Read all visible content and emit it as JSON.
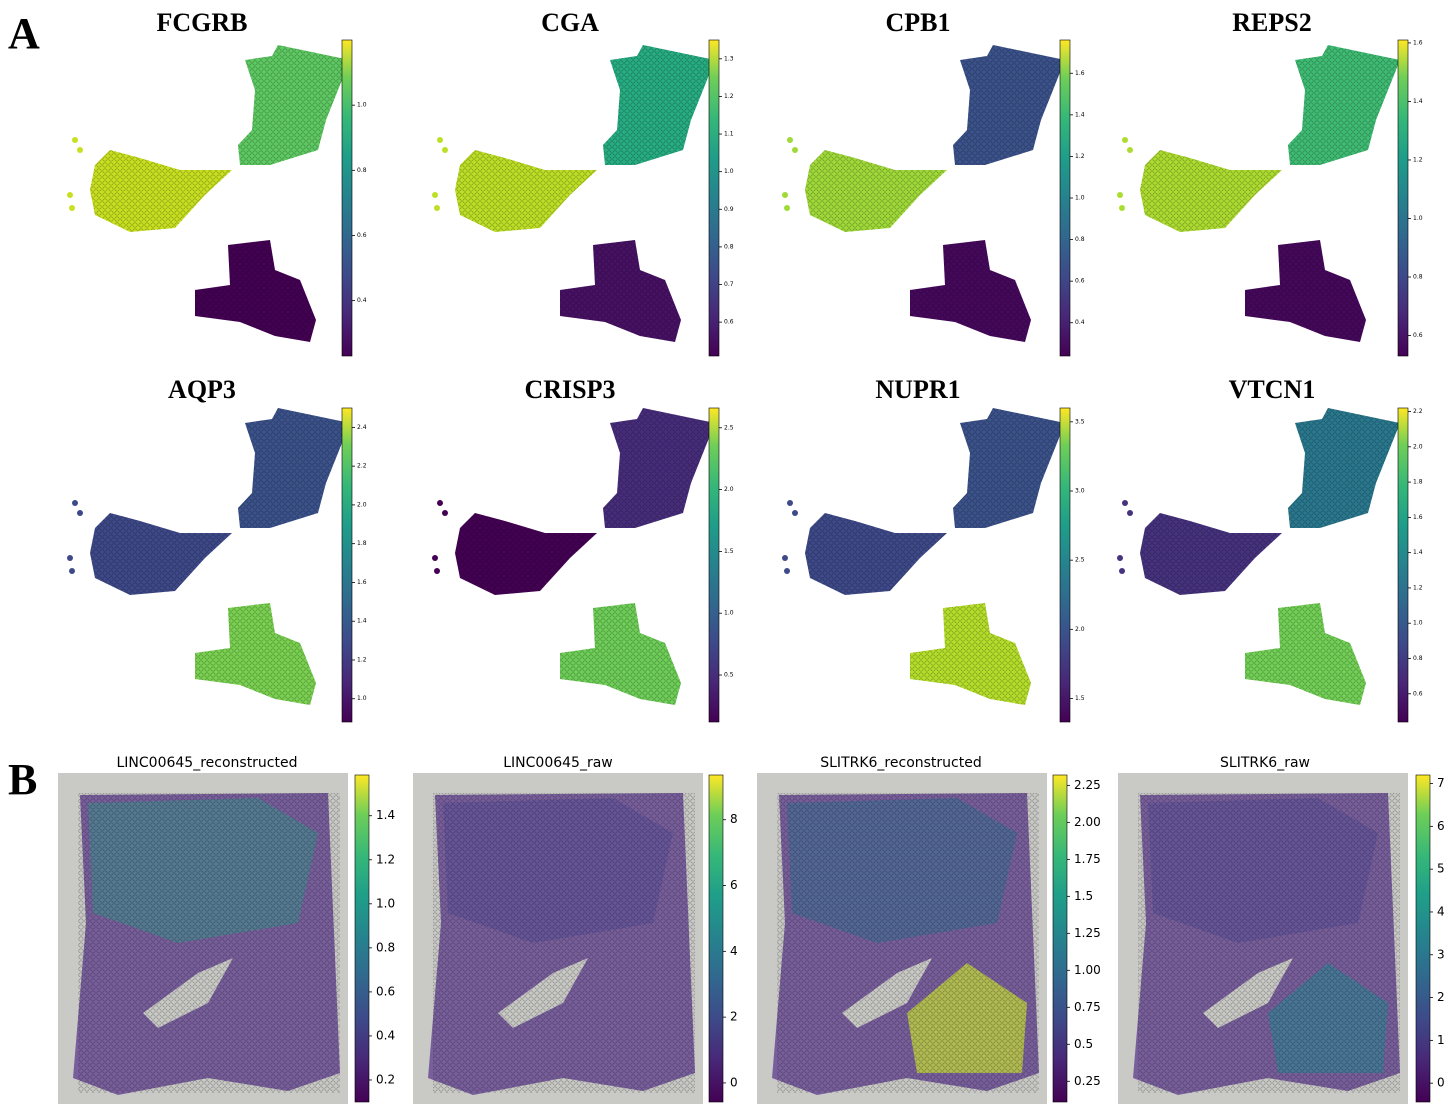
{
  "panel_labels": [
    "A",
    "B"
  ],
  "panels": [
    {
      "title": "FCGRB",
      "colorbar": {
        "lim": [
          0.23,
          1.2
        ],
        "ticks": [
          0.4,
          0.6,
          0.8,
          {
            "value": 1.0,
            "label": "1.0"
          }
        ]
      }
    },
    {
      "title": "CGA",
      "colorbar": {
        "lim": [
          0.51,
          1.35
        ],
        "ticks": [
          0.6,
          0.7,
          0.8,
          0.9,
          {
            "value": 1.0,
            "label": "1.0"
          },
          1.1,
          1.2,
          1.3
        ]
      }
    },
    {
      "title": "CPB1",
      "colorbar": {
        "lim": [
          0.24,
          1.76
        ],
        "ticks": [
          0.4,
          0.6,
          0.8,
          {
            "value": 1.0,
            "label": "1.0"
          },
          1.2,
          1.4,
          1.6
        ]
      }
    },
    {
      "title": "REPS2",
      "colorbar": {
        "lim": [
          0.53,
          1.61
        ],
        "ticks": [
          0.6,
          0.8,
          {
            "value": 1.0,
            "label": "1.0"
          },
          1.2,
          1.4,
          1.6
        ]
      }
    },
    {
      "title": "AQP3",
      "colorbar": {
        "lim": [
          0.88,
          2.5
        ],
        "ticks": [
          {
            "value": 1.0,
            "label": "1.0"
          },
          1.2,
          1.4,
          1.6,
          1.8,
          {
            "value": 2.0,
            "label": "2.0"
          },
          2.2,
          2.4
        ]
      }
    },
    {
      "title": "CRISP3",
      "colorbar": {
        "lim": [
          0.12,
          2.66
        ],
        "ticks": [
          0.5,
          {
            "value": 1.0,
            "label": "1.0"
          },
          1.5,
          {
            "value": 2.0,
            "label": "2.0"
          },
          2.5
        ]
      }
    },
    {
      "title": "NUPR1",
      "colorbar": {
        "lim": [
          1.33,
          3.6
        ],
        "ticks": [
          1.5,
          {
            "value": 2.0,
            "label": "2.0"
          },
          2.5,
          {
            "value": 3.0,
            "label": "3.0"
          },
          3.5
        ]
      }
    },
    {
      "title": "VTCN1",
      "colorbar": {
        "lim": [
          0.44,
          2.22
        ],
        "ticks": [
          0.6,
          0.8,
          {
            "value": 1.0,
            "label": "1.0"
          },
          1.2,
          1.4,
          1.6,
          1.8,
          {
            "value": 2.0,
            "label": "2.0"
          },
          2.2
        ]
      }
    },
    {
      "title": "LINC00645_reconstructed",
      "colorbar": {
        "lim": [
          0.1,
          1.585
        ],
        "ticks": [
          0.2,
          0.4,
          0.6,
          0.8,
          {
            "value": 1.0,
            "label": "1.0"
          },
          1.2,
          1.4
        ]
      }
    },
    {
      "title": "LINC00645_raw",
      "colorbar": {
        "lim": [
          -0.58,
          9.36
        ],
        "ticks": [
          0,
          2,
          4,
          6,
          8
        ]
      }
    },
    {
      "title": "SLITRK6_reconstructed",
      "colorbar": {
        "lim": [
          0.11,
          2.32
        ],
        "ticks": [
          0.25,
          0.5,
          0.75,
          {
            "value": 1.0,
            "label": "1.00"
          },
          1.25,
          1.5,
          1.75,
          {
            "value": 2.0,
            "label": "2.00"
          },
          2.25
        ]
      }
    },
    {
      "title": "SLITRK6_raw",
      "colorbar": {
        "lim": [
          -0.44,
          7.2
        ],
        "ticks": [
          0,
          1,
          2,
          3,
          4,
          5,
          6,
          7
        ]
      }
    }
  ]
}
